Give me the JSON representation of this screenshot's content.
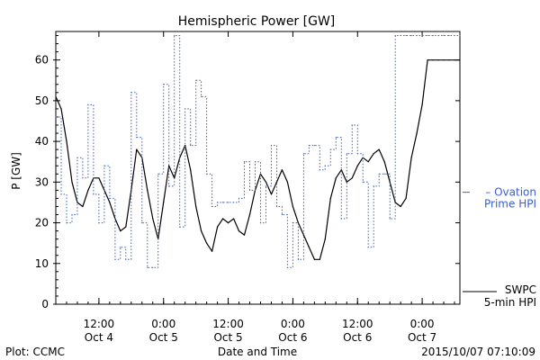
{
  "chart_data": {
    "type": "line",
    "title": "Hemispheric Power [GW]",
    "xlabel": "Date and Time",
    "ylabel": "P [GW]",
    "ylim": [
      0,
      67
    ],
    "yticks": [
      0,
      10,
      20,
      30,
      40,
      50,
      60
    ],
    "xlim": [
      "2015-10-04 04:00",
      "2015-10-07 07:00"
    ],
    "xticks": [
      {
        "t": "2015-10-04 12:00",
        "l1": "12:00",
        "l2": "Oct 4"
      },
      {
        "t": "2015-10-05 00:00",
        "l1": "0:00",
        "l2": "Oct 5"
      },
      {
        "t": "2015-10-05 12:00",
        "l1": "12:00",
        "l2": "Oct 5"
      },
      {
        "t": "2015-10-06 00:00",
        "l1": "0:00",
        "l2": "Oct 6"
      },
      {
        "t": "2015-10-06 12:00",
        "l1": "12:00",
        "l2": "Oct 6"
      },
      {
        "t": "2015-10-07 00:00",
        "l1": "0:00",
        "l2": "Oct 7"
      }
    ],
    "grid": false,
    "series": [
      {
        "name": "SWPC 5-min HPI",
        "label_lines": [
          "SWPC",
          "5-min HPI"
        ],
        "color": "#000000",
        "style": "solid",
        "x": [
          "2015-10-04 04:00",
          "2015-10-04 05:00",
          "2015-10-04 06:00",
          "2015-10-04 07:00",
          "2015-10-04 08:00",
          "2015-10-04 09:00",
          "2015-10-04 10:00",
          "2015-10-04 11:00",
          "2015-10-04 12:00",
          "2015-10-04 13:00",
          "2015-10-04 14:00",
          "2015-10-04 15:00",
          "2015-10-04 16:00",
          "2015-10-04 17:00",
          "2015-10-04 18:00",
          "2015-10-04 19:00",
          "2015-10-04 20:00",
          "2015-10-04 21:00",
          "2015-10-04 22:00",
          "2015-10-04 23:00",
          "2015-10-05 00:00",
          "2015-10-05 01:00",
          "2015-10-05 02:00",
          "2015-10-05 03:00",
          "2015-10-05 04:00",
          "2015-10-05 05:00",
          "2015-10-05 06:00",
          "2015-10-05 07:00",
          "2015-10-05 08:00",
          "2015-10-05 09:00",
          "2015-10-05 10:00",
          "2015-10-05 11:00",
          "2015-10-05 12:00",
          "2015-10-05 13:00",
          "2015-10-05 14:00",
          "2015-10-05 15:00",
          "2015-10-05 16:00",
          "2015-10-05 17:00",
          "2015-10-05 18:00",
          "2015-10-05 19:00",
          "2015-10-05 20:00",
          "2015-10-05 21:00",
          "2015-10-05 22:00",
          "2015-10-05 23:00",
          "2015-10-06 00:00",
          "2015-10-06 01:00",
          "2015-10-06 02:00",
          "2015-10-06 03:00",
          "2015-10-06 04:00",
          "2015-10-06 05:00",
          "2015-10-06 06:00",
          "2015-10-06 07:00",
          "2015-10-06 08:00",
          "2015-10-06 09:00",
          "2015-10-06 10:00",
          "2015-10-06 11:00",
          "2015-10-06 12:00",
          "2015-10-06 13:00",
          "2015-10-06 14:00",
          "2015-10-06 15:00",
          "2015-10-06 16:00",
          "2015-10-06 17:00",
          "2015-10-06 18:00",
          "2015-10-06 19:00",
          "2015-10-06 20:00",
          "2015-10-06 21:00",
          "2015-10-06 22:00",
          "2015-10-06 23:00",
          "2015-10-07 00:00",
          "2015-10-07 01:00",
          "2015-10-07 02:00",
          "2015-10-07 03:00",
          "2015-10-07 04:00",
          "2015-10-07 05:00",
          "2015-10-07 06:00",
          "2015-10-07 07:00"
        ],
        "values": [
          51,
          48,
          40,
          30,
          25,
          24,
          28,
          31,
          31,
          28,
          25,
          21,
          18,
          19,
          28,
          38,
          36,
          28,
          21,
          16,
          25,
          34,
          31,
          36,
          39,
          33,
          24,
          18,
          15,
          13,
          19,
          21,
          20,
          21,
          18,
          17,
          22,
          28,
          32,
          30,
          27,
          30,
          33,
          30,
          24,
          20,
          17,
          14,
          11,
          11,
          16,
          26,
          31,
          33,
          30,
          31,
          34,
          36,
          35,
          37,
          38,
          35,
          30,
          25,
          24,
          26,
          36,
          42,
          49,
          60,
          60,
          60,
          60,
          60,
          60,
          60
        ]
      },
      {
        "name": "Ovation Prime HPI",
        "label_lines": [
          "Ovation",
          "Prime HPI"
        ],
        "color": "#3a5fcd",
        "style": "dotted-steps",
        "x": [
          "2015-10-04 04:00",
          "2015-10-04 05:00",
          "2015-10-04 06:00",
          "2015-10-04 07:00",
          "2015-10-04 08:00",
          "2015-10-04 09:00",
          "2015-10-04 10:00",
          "2015-10-04 11:00",
          "2015-10-04 12:00",
          "2015-10-04 13:00",
          "2015-10-04 14:00",
          "2015-10-04 15:00",
          "2015-10-04 16:00",
          "2015-10-04 17:00",
          "2015-10-04 18:00",
          "2015-10-04 19:00",
          "2015-10-04 20:00",
          "2015-10-04 21:00",
          "2015-10-04 22:00",
          "2015-10-04 23:00",
          "2015-10-05 00:00",
          "2015-10-05 01:00",
          "2015-10-05 02:00",
          "2015-10-05 03:00",
          "2015-10-05 04:00",
          "2015-10-05 05:00",
          "2015-10-05 06:00",
          "2015-10-05 07:00",
          "2015-10-05 08:00",
          "2015-10-05 09:00",
          "2015-10-05 10:00",
          "2015-10-05 11:00",
          "2015-10-05 12:00",
          "2015-10-05 13:00",
          "2015-10-05 14:00",
          "2015-10-05 15:00",
          "2015-10-05 16:00",
          "2015-10-05 17:00",
          "2015-10-05 18:00",
          "2015-10-05 19:00",
          "2015-10-05 20:00",
          "2015-10-05 21:00",
          "2015-10-05 22:00",
          "2015-10-05 23:00",
          "2015-10-06 00:00",
          "2015-10-06 01:00",
          "2015-10-06 02:00",
          "2015-10-06 03:00",
          "2015-10-06 04:00",
          "2015-10-06 05:00",
          "2015-10-06 06:00",
          "2015-10-06 07:00",
          "2015-10-06 08:00",
          "2015-10-06 09:00",
          "2015-10-06 10:00",
          "2015-10-06 11:00",
          "2015-10-06 12:00",
          "2015-10-06 13:00",
          "2015-10-06 14:00",
          "2015-10-06 15:00",
          "2015-10-06 16:00",
          "2015-10-06 17:00",
          "2015-10-06 18:00",
          "2015-10-06 19:00",
          "2015-10-06 20:00",
          "2015-10-06 21:00",
          "2015-10-06 22:00",
          "2015-10-06 23:00",
          "2015-10-07 00:00",
          "2015-10-07 01:00",
          "2015-10-07 02:00",
          "2015-10-07 03:00",
          "2015-10-07 04:00",
          "2015-10-07 05:00",
          "2015-10-07 06:00",
          "2015-10-07 07:00"
        ],
        "values": [
          46,
          27,
          20,
          22,
          36,
          31,
          49,
          27,
          20,
          34,
          26,
          11,
          14,
          11,
          52,
          41,
          20,
          9,
          9,
          32,
          54,
          29,
          66,
          19,
          48,
          39,
          55,
          51,
          32,
          24,
          25,
          25,
          25,
          25,
          26,
          35,
          28,
          35,
          20,
          29,
          39,
          24,
          22,
          9,
          20,
          11,
          37,
          39,
          39,
          33,
          34,
          38,
          41,
          21,
          37,
          44,
          37,
          30,
          14,
          29,
          32,
          32,
          21,
          66,
          66,
          66,
          66,
          66,
          66,
          66,
          66,
          66,
          66,
          66,
          66,
          66
        ]
      }
    ],
    "annotations": {
      "bottom_left": "Plot: CCMC",
      "bottom_right": "2015/10/07 07:10:09"
    }
  }
}
